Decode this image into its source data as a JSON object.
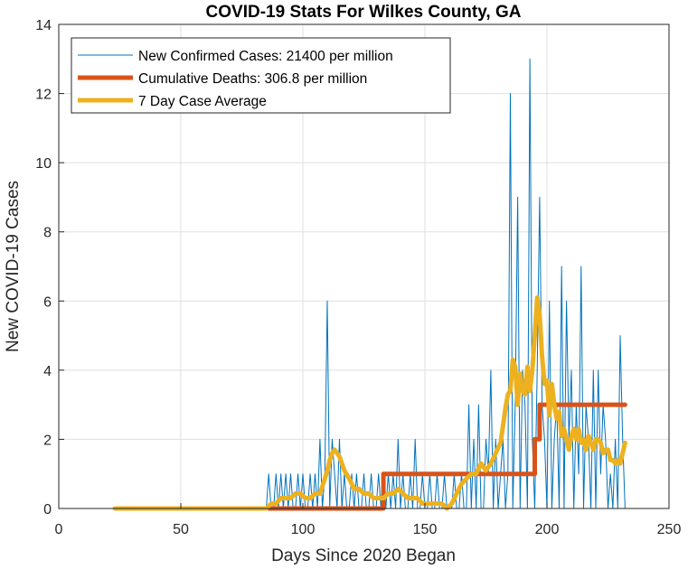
{
  "chart_data": {
    "type": "line",
    "title": "COVID-19 Stats For Wilkes County, GA",
    "xlabel": "Days Since 2020 Began",
    "ylabel": "New COVID-19 Cases",
    "xlim": [
      0,
      250
    ],
    "ylim": [
      0,
      14
    ],
    "xticks": [
      "0",
      "50",
      "100",
      "150",
      "200",
      "250"
    ],
    "yticks": [
      "0",
      "2",
      "4",
      "6",
      "8",
      "10",
      "12",
      "14"
    ],
    "grid": true,
    "legend_position": "top-left",
    "series": [
      {
        "name": "New Confirmed Cases: 21400 per million",
        "color": "#0072BD",
        "kind": "thin",
        "x": [
          85,
          86,
          87,
          88,
          89,
          90,
          91,
          92,
          93,
          94,
          95,
          96,
          97,
          98,
          99,
          100,
          101,
          102,
          103,
          104,
          105,
          106,
          107,
          108,
          109,
          110,
          111,
          112,
          113,
          114,
          115,
          116,
          117,
          118,
          119,
          120,
          121,
          122,
          123,
          124,
          125,
          126,
          127,
          128,
          129,
          130,
          131,
          132,
          133,
          134,
          135,
          136,
          137,
          138,
          139,
          140,
          141,
          142,
          143,
          144,
          145,
          146,
          147,
          148,
          149,
          150,
          151,
          152,
          153,
          154,
          155,
          156,
          157,
          158,
          159,
          160,
          161,
          162,
          163,
          164,
          165,
          166,
          167,
          168,
          169,
          170,
          171,
          172,
          173,
          174,
          175,
          176,
          177,
          178,
          179,
          180,
          181,
          182,
          183,
          184,
          185,
          186,
          187,
          188,
          189,
          190,
          191,
          192,
          193,
          194,
          195,
          196,
          197,
          198,
          199,
          200,
          201,
          202,
          203,
          204,
          205,
          206,
          207,
          208,
          209,
          210,
          211,
          212,
          213,
          214,
          215,
          216,
          217,
          218,
          219,
          220,
          221,
          222,
          223,
          224,
          225,
          226,
          227,
          228,
          229,
          230,
          231,
          232
        ],
        "y": [
          0,
          1,
          0,
          0,
          1,
          0,
          1,
          0,
          1,
          0,
          1,
          0,
          0,
          1,
          0,
          1,
          0,
          0,
          1,
          0,
          1,
          0,
          2,
          0,
          1,
          6,
          0,
          2,
          1,
          0,
          2,
          0,
          1,
          0,
          0,
          1,
          0,
          1,
          0,
          0,
          1,
          0,
          0,
          1,
          0,
          0,
          1,
          0,
          1,
          0,
          1,
          0,
          1,
          0,
          2,
          0,
          1,
          0,
          0,
          1,
          0,
          2,
          0,
          0,
          1,
          0,
          0,
          1,
          0,
          0,
          1,
          0,
          0,
          1,
          0,
          0,
          0,
          1,
          0,
          0,
          1,
          0,
          0,
          3,
          0,
          2,
          0,
          3,
          0,
          0,
          2,
          1,
          4,
          0,
          2,
          0,
          1,
          2,
          0,
          1,
          12,
          0,
          3,
          9,
          0,
          4,
          3,
          0,
          13,
          2,
          0,
          4,
          9,
          3,
          2,
          0,
          6,
          0,
          2,
          3,
          0,
          7,
          0,
          6,
          2,
          4,
          0,
          3,
          1,
          7,
          0,
          3,
          2,
          0,
          4,
          0,
          4,
          1,
          3,
          2,
          0,
          1,
          0,
          2,
          0,
          5,
          2,
          0
        ]
      },
      {
        "name": "Cumulative Deaths: 306.8 per million",
        "color": "#D95319",
        "kind": "thick",
        "x": [
          86,
          133,
          133,
          195,
          195,
          197,
          197,
          232
        ],
        "y": [
          0,
          0,
          1,
          1,
          2,
          2,
          3,
          3
        ]
      },
      {
        "name": "7 Day Case Average",
        "color": "#EDB120",
        "kind": "thick",
        "x": [
          23,
          85,
          87,
          89,
          91,
          93,
          95,
          97,
          99,
          101,
          103,
          105,
          107,
          109,
          110,
          111,
          112,
          113,
          114,
          115,
          117,
          119,
          121,
          123,
          125,
          127,
          129,
          131,
          133,
          135,
          137,
          139,
          141,
          143,
          145,
          147,
          149,
          151,
          153,
          155,
          157,
          159,
          161,
          163,
          165,
          167,
          169,
          171,
          173,
          175,
          177,
          179,
          181,
          183,
          184,
          185,
          186,
          187,
          188,
          189,
          190,
          191,
          192,
          193,
          194,
          195,
          196,
          197,
          198,
          199,
          200,
          201,
          202,
          203,
          204,
          205,
          206,
          207,
          208,
          209,
          210,
          211,
          212,
          213,
          214,
          215,
          216,
          217,
          218,
          219,
          220,
          221,
          222,
          223,
          224,
          225,
          226,
          227,
          228,
          229,
          230,
          231,
          232
        ],
        "y": [
          0,
          0,
          0.14,
          0.14,
          0.3,
          0.3,
          0.3,
          0.43,
          0.43,
          0.3,
          0.3,
          0.43,
          0.43,
          0.86,
          1.1,
          1.4,
          1.6,
          1.7,
          1.6,
          1.5,
          1.1,
          0.86,
          0.57,
          0.57,
          0.43,
          0.43,
          0.3,
          0.3,
          0.3,
          0.43,
          0.43,
          0.57,
          0.43,
          0.3,
          0.3,
          0.3,
          0.14,
          0.14,
          0.14,
          0.14,
          0.14,
          0,
          0.14,
          0.43,
          0.71,
          0.86,
          1.0,
          1.0,
          1.3,
          1.1,
          1.3,
          1.6,
          1.9,
          2.9,
          3.3,
          3.4,
          4.3,
          4.1,
          3.0,
          3.9,
          3.4,
          3.3,
          4.1,
          3.4,
          4.0,
          5.0,
          6.1,
          5.6,
          4.4,
          3.6,
          3.7,
          2.7,
          3.6,
          3.0,
          2.6,
          2.8,
          2.1,
          2.3,
          2.0,
          1.7,
          2.1,
          2.3,
          2.0,
          2.3,
          1.9,
          2.0,
          1.7,
          2.1,
          1.9,
          1.7,
          2.0,
          2.0,
          1.9,
          1.6,
          1.7,
          1.7,
          1.4,
          1.4,
          1.3,
          1.4,
          1.3,
          1.6,
          1.9
        ]
      }
    ]
  }
}
